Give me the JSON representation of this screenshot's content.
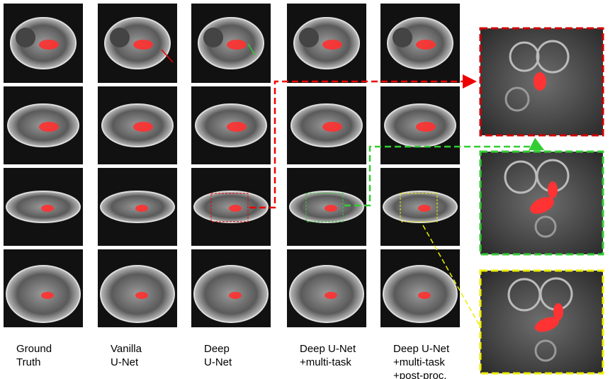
{
  "columns": [
    {
      "label": [
        "Ground",
        "Truth"
      ]
    },
    {
      "label": [
        "Vanilla",
        "U-Net"
      ]
    },
    {
      "label": [
        "Deep",
        "U-Net"
      ]
    },
    {
      "label": [
        "Deep U-Net",
        "+multi-task"
      ]
    },
    {
      "label": [
        "Deep U-Net",
        "+multi-task",
        "+post-proc."
      ]
    }
  ]
}
